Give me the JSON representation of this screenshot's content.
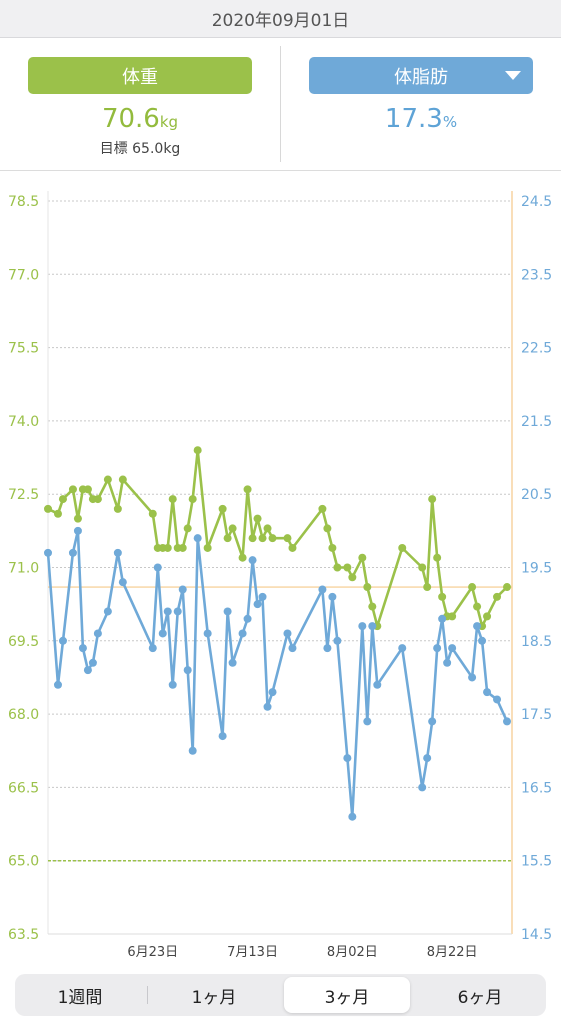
{
  "header": {
    "date": "2020年09月01日"
  },
  "summary": {
    "weight": {
      "label": "体重",
      "value": "70.6",
      "unit": "kg",
      "goal_label": "目標",
      "goal_value": "65.0kg"
    },
    "fat": {
      "label": "体脂肪",
      "value": "17.3",
      "unit": "%"
    }
  },
  "colors": {
    "weight": "#9bc14a",
    "fat": "#6fa9d8",
    "current_line": "#f5c98a"
  },
  "tabs": [
    {
      "label": "1週間",
      "active": false
    },
    {
      "label": "1ヶ月",
      "active": false
    },
    {
      "label": "3ヶ月",
      "active": true
    },
    {
      "label": "6ヶ月",
      "active": false
    }
  ],
  "chart_data": {
    "type": "line",
    "x_tick_labels": [
      "6月23日",
      "7月13日",
      "8月02日",
      "8月22日"
    ],
    "x_tick_days": [
      21,
      41,
      61,
      81
    ],
    "x_range_days": [
      0,
      93
    ],
    "left_axis": {
      "ticks": [
        "78.5",
        "77.0",
        "75.5",
        "74.0",
        "72.5",
        "71.0",
        "69.5",
        "68.0",
        "66.5",
        "65.0",
        "63.5"
      ],
      "ylim": [
        63.5,
        78.5
      ]
    },
    "right_axis": {
      "ticks": [
        "24.5",
        "23.5",
        "22.5",
        "21.5",
        "20.5",
        "19.5",
        "18.5",
        "17.5",
        "16.5",
        "15.5",
        "14.5"
      ],
      "ylim": [
        14.5,
        24.5
      ]
    },
    "grid": true,
    "goal_weight": 65.0,
    "current_weight": 70.6,
    "series": [
      {
        "axis": "left",
        "points": [
          [
            0,
            72.2
          ],
          [
            2,
            72.1
          ],
          [
            3,
            72.4
          ],
          [
            5,
            72.6
          ],
          [
            6,
            72.0
          ],
          [
            7,
            72.6
          ],
          [
            8,
            72.6
          ],
          [
            9,
            72.4
          ],
          [
            10,
            72.4
          ],
          [
            12,
            72.8
          ],
          [
            14,
            72.2
          ],
          [
            15,
            72.8
          ],
          [
            21,
            72.1
          ],
          [
            22,
            71.4
          ],
          [
            23,
            71.4
          ],
          [
            24,
            71.4
          ],
          [
            25,
            72.4
          ],
          [
            26,
            71.4
          ],
          [
            27,
            71.4
          ],
          [
            28,
            71.8
          ],
          [
            29,
            72.4
          ],
          [
            30,
            73.4
          ],
          [
            32,
            71.4
          ],
          [
            35,
            72.2
          ],
          [
            36,
            71.6
          ],
          [
            37,
            71.8
          ],
          [
            39,
            71.2
          ],
          [
            40,
            72.6
          ],
          [
            41,
            71.6
          ],
          [
            42,
            72.0
          ],
          [
            43,
            71.6
          ],
          [
            44,
            71.8
          ],
          [
            45,
            71.6
          ],
          [
            48,
            71.6
          ],
          [
            49,
            71.4
          ],
          [
            55,
            72.2
          ],
          [
            56,
            71.8
          ],
          [
            57,
            71.4
          ],
          [
            58,
            71.0
          ],
          [
            60,
            71.0
          ],
          [
            61,
            70.8
          ],
          [
            63,
            71.2
          ],
          [
            64,
            70.6
          ],
          [
            65,
            70.2
          ],
          [
            66,
            69.8
          ],
          [
            71,
            71.4
          ],
          [
            75,
            71.0
          ],
          [
            76,
            70.6
          ],
          [
            77,
            72.4
          ],
          [
            78,
            71.2
          ],
          [
            79,
            70.4
          ],
          [
            80,
            70.0
          ],
          [
            81,
            70.0
          ],
          [
            85,
            70.6
          ],
          [
            86,
            70.2
          ],
          [
            87,
            69.8
          ],
          [
            88,
            70.0
          ],
          [
            90,
            70.4
          ],
          [
            92,
            70.6
          ]
        ]
      },
      {
        "axis": "right",
        "points": [
          [
            0,
            19.7
          ],
          [
            2,
            17.9
          ],
          [
            3,
            18.5
          ],
          [
            5,
            19.7
          ],
          [
            6,
            20.0
          ],
          [
            7,
            18.4
          ],
          [
            8,
            18.1
          ],
          [
            9,
            18.2
          ],
          [
            10,
            18.6
          ],
          [
            12,
            18.9
          ],
          [
            14,
            19.7
          ],
          [
            15,
            19.3
          ],
          [
            21,
            18.4
          ],
          [
            22,
            19.5
          ],
          [
            23,
            18.6
          ],
          [
            24,
            18.9
          ],
          [
            25,
            17.9
          ],
          [
            26,
            18.9
          ],
          [
            27,
            19.2
          ],
          [
            28,
            18.1
          ],
          [
            29,
            17.0
          ],
          [
            30,
            19.9
          ],
          [
            32,
            18.6
          ],
          [
            35,
            17.2
          ],
          [
            36,
            18.9
          ],
          [
            37,
            18.2
          ],
          [
            39,
            18.6
          ],
          [
            40,
            18.8
          ],
          [
            41,
            19.6
          ],
          [
            42,
            19.0
          ],
          [
            43,
            19.1
          ],
          [
            44,
            17.6
          ],
          [
            45,
            17.8
          ],
          [
            48,
            18.6
          ],
          [
            49,
            18.4
          ],
          [
            55,
            19.2
          ],
          [
            56,
            18.4
          ],
          [
            57,
            19.1
          ],
          [
            58,
            18.5
          ],
          [
            60,
            16.9
          ],
          [
            61,
            16.1
          ],
          [
            63,
            18.7
          ],
          [
            64,
            17.4
          ],
          [
            65,
            18.7
          ],
          [
            66,
            17.9
          ],
          [
            71,
            18.4
          ],
          [
            75,
            16.5
          ],
          [
            76,
            16.9
          ],
          [
            77,
            17.4
          ],
          [
            78,
            18.4
          ],
          [
            79,
            18.8
          ],
          [
            80,
            18.2
          ],
          [
            81,
            18.4
          ],
          [
            85,
            18.0
          ],
          [
            86,
            18.7
          ],
          [
            87,
            18.5
          ],
          [
            88,
            17.8
          ],
          [
            90,
            17.7
          ],
          [
            92,
            17.4
          ]
        ]
      }
    ]
  }
}
